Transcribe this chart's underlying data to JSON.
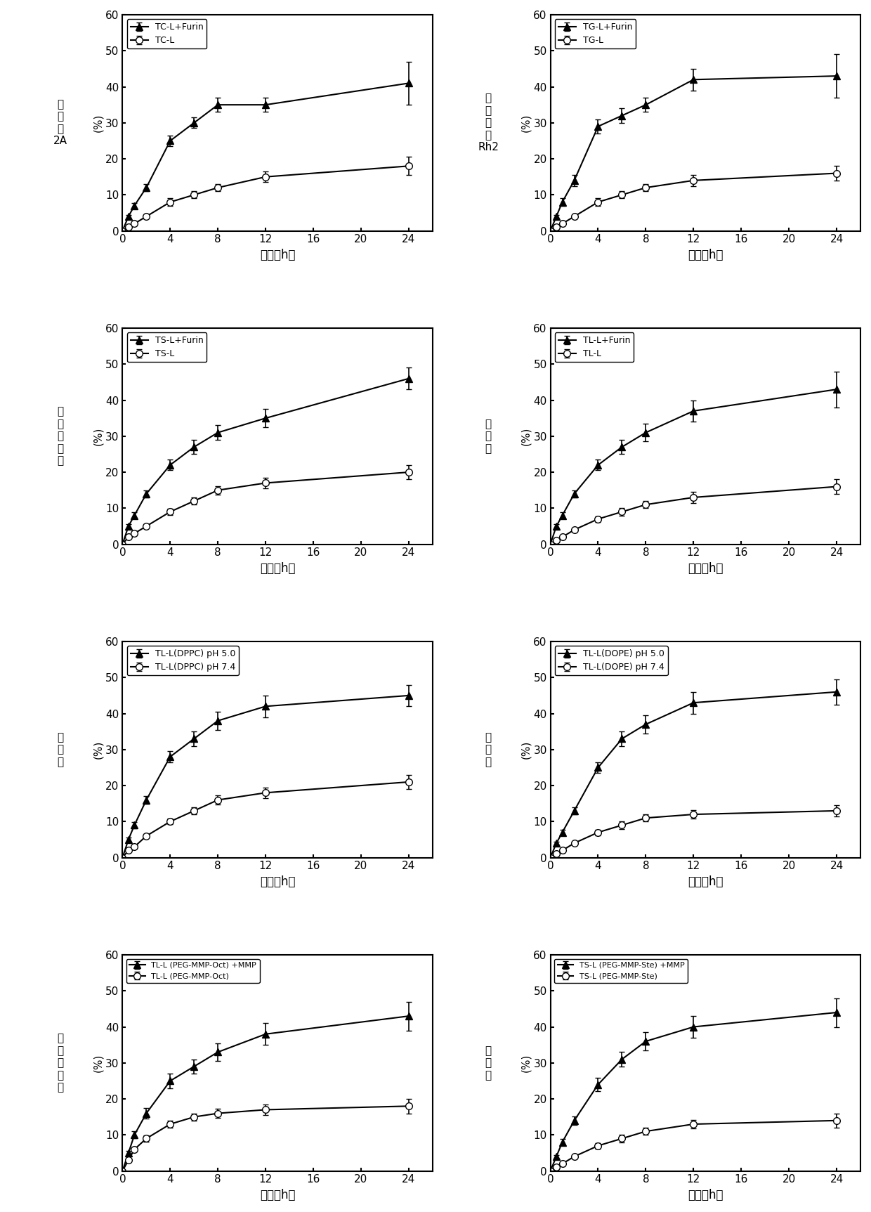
{
  "subplots": [
    {
      "ylabel_cn": "丹\n参\n酮\n2A",
      "legend1": "TC-L+Furin",
      "legend2": "TC-L",
      "high_x": [
        0,
        0.5,
        1,
        2,
        4,
        6,
        8,
        12,
        24
      ],
      "high_y": [
        0,
        4,
        7,
        12,
        25,
        30,
        35,
        35,
        41
      ],
      "high_err": [
        0,
        0.5,
        0.8,
        1.0,
        1.5,
        1.5,
        2.0,
        2.0,
        6
      ],
      "low_x": [
        0,
        0.5,
        1,
        2,
        4,
        6,
        8,
        12,
        24
      ],
      "low_y": [
        0,
        1,
        2,
        4,
        8,
        10,
        12,
        15,
        18
      ],
      "low_err": [
        0,
        0.3,
        0.5,
        0.5,
        1.0,
        1.0,
        1.0,
        1.5,
        2.5
      ]
    },
    {
      "ylabel_cn": "人\n参\n皂\n苷\nRh2",
      "legend1": "TG-L+Furin",
      "legend2": "TG-L",
      "high_x": [
        0,
        0.5,
        1,
        2,
        4,
        6,
        8,
        12,
        24
      ],
      "high_y": [
        0,
        4,
        8,
        14,
        29,
        32,
        35,
        42,
        43
      ],
      "high_err": [
        0,
        0.5,
        1.0,
        1.5,
        2.0,
        2.0,
        2.0,
        3.0,
        6
      ],
      "low_x": [
        0,
        0.5,
        1,
        2,
        4,
        6,
        8,
        12,
        24
      ],
      "low_y": [
        0,
        1,
        2,
        4,
        8,
        10,
        12,
        14,
        16
      ],
      "low_err": [
        0,
        0.3,
        0.5,
        0.5,
        1.0,
        1.0,
        1.0,
        1.5,
        2.0
      ]
    },
    {
      "ylabel_cn": "五\n味\n子\n甲\n素",
      "legend1": "TS-L+Furin",
      "legend2": "TS-L",
      "high_x": [
        0,
        0.5,
        1,
        2,
        4,
        6,
        8,
        12,
        24
      ],
      "high_y": [
        0,
        5,
        8,
        14,
        22,
        27,
        31,
        35,
        46
      ],
      "high_err": [
        0,
        0.5,
        0.8,
        1.0,
        1.5,
        2.0,
        2.0,
        2.5,
        3.0
      ],
      "low_x": [
        0,
        0.5,
        1,
        2,
        4,
        6,
        8,
        12,
        24
      ],
      "low_y": [
        0,
        2,
        3,
        5,
        9,
        12,
        15,
        17,
        20
      ],
      "low_err": [
        0,
        0.3,
        0.5,
        0.5,
        0.8,
        1.0,
        1.2,
        1.5,
        2.0
      ]
    },
    {
      "ylabel_cn": "川\n芎\n嗪",
      "legend1": "TL-L+Furin",
      "legend2": "TL-L",
      "high_x": [
        0,
        0.5,
        1,
        2,
        4,
        6,
        8,
        12,
        24
      ],
      "high_y": [
        0,
        5,
        8,
        14,
        22,
        27,
        31,
        37,
        43
      ],
      "high_err": [
        0,
        0.5,
        0.8,
        1.0,
        1.5,
        2.0,
        2.5,
        3.0,
        5.0
      ],
      "low_x": [
        0,
        0.5,
        1,
        2,
        4,
        6,
        8,
        12,
        24
      ],
      "low_y": [
        0,
        1,
        2,
        4,
        7,
        9,
        11,
        13,
        16
      ],
      "low_err": [
        0,
        0.3,
        0.5,
        0.5,
        0.8,
        1.0,
        1.0,
        1.5,
        2.0
      ]
    },
    {
      "ylabel_cn": "川\n芎\n嗪",
      "legend1": "TL-L(DPPC) pH 5.0",
      "legend2": "TL-L(DPPC) pH 7.4",
      "high_x": [
        0,
        0.5,
        1,
        2,
        4,
        6,
        8,
        12,
        24
      ],
      "high_y": [
        0,
        5,
        9,
        16,
        28,
        33,
        38,
        42,
        45
      ],
      "high_err": [
        0,
        0.5,
        0.8,
        1.0,
        1.5,
        2.0,
        2.5,
        3.0,
        3.0
      ],
      "low_x": [
        0,
        0.5,
        1,
        2,
        4,
        6,
        8,
        12,
        24
      ],
      "low_y": [
        0,
        2,
        3,
        6,
        10,
        13,
        16,
        18,
        21
      ],
      "low_err": [
        0,
        0.3,
        0.5,
        0.5,
        0.8,
        1.0,
        1.2,
        1.5,
        2.0
      ]
    },
    {
      "ylabel_cn": "川\n芎\n嗪",
      "legend1": "TL-L(DOPE) pH 5.0",
      "legend2": "TL-L(DOPE) pH 7.4",
      "high_x": [
        0,
        0.5,
        1,
        2,
        4,
        6,
        8,
        12,
        24
      ],
      "high_y": [
        0,
        4,
        7,
        13,
        25,
        33,
        37,
        43,
        46
      ],
      "high_err": [
        0,
        0.5,
        0.8,
        1.0,
        1.5,
        2.0,
        2.5,
        3.0,
        3.5
      ],
      "low_x": [
        0,
        0.5,
        1,
        2,
        4,
        6,
        8,
        12,
        24
      ],
      "low_y": [
        0,
        1,
        2,
        4,
        7,
        9,
        11,
        12,
        13
      ],
      "low_err": [
        0,
        0.3,
        0.5,
        0.5,
        0.8,
        1.0,
        1.0,
        1.2,
        1.5
      ]
    },
    {
      "ylabel_cn": "五\n味\n子\n甲\n素",
      "legend1": "TL-L (PEG-MMP-Oct) +MMP",
      "legend2": "TL-L (PEG-MMP-Oct)",
      "high_x": [
        0,
        0.5,
        1,
        2,
        4,
        6,
        8,
        12,
        24
      ],
      "high_y": [
        0,
        5,
        10,
        16,
        25,
        29,
        33,
        38,
        43
      ],
      "high_err": [
        0,
        0.5,
        1.0,
        1.5,
        2.0,
        2.0,
        2.5,
        3.0,
        4.0
      ],
      "low_x": [
        0,
        0.5,
        1,
        2,
        4,
        6,
        8,
        12,
        24
      ],
      "low_y": [
        0,
        3,
        6,
        9,
        13,
        15,
        16,
        17,
        18
      ],
      "low_err": [
        0,
        0.3,
        0.5,
        0.8,
        1.0,
        1.0,
        1.2,
        1.5,
        2.0
      ]
    },
    {
      "ylabel_cn": "川\n芎\n嗪",
      "legend1": "TS-L (PEG-MMP-Ste) +MMP",
      "legend2": "TS-L (PEG-MMP-Ste)",
      "high_x": [
        0,
        0.5,
        1,
        2,
        4,
        6,
        8,
        12,
        24
      ],
      "high_y": [
        0,
        4,
        8,
        14,
        24,
        31,
        36,
        40,
        44
      ],
      "high_err": [
        0,
        0.5,
        0.8,
        1.2,
        1.8,
        2.0,
        2.5,
        3.0,
        4.0
      ],
      "low_x": [
        0,
        0.5,
        1,
        2,
        4,
        6,
        8,
        12,
        24
      ],
      "low_y": [
        0,
        1,
        2,
        4,
        7,
        9,
        11,
        13,
        14
      ],
      "low_err": [
        0,
        0.3,
        0.5,
        0.5,
        0.8,
        1.0,
        1.0,
        1.2,
        2.0
      ]
    }
  ],
  "xlabel_cn": "时间（h）",
  "ylim": [
    0,
    60
  ],
  "xlim": [
    0,
    26
  ],
  "yticks": [
    0,
    10,
    20,
    30,
    40,
    50,
    60
  ],
  "xticks": [
    0,
    4,
    8,
    12,
    16,
    20,
    24
  ]
}
